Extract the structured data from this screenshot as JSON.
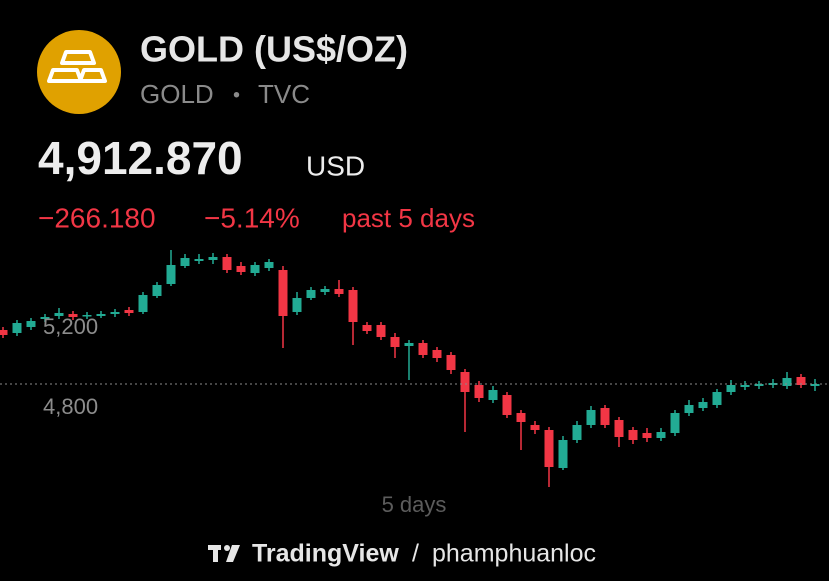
{
  "header": {
    "title": "GOLD (US$/OZ)",
    "symbol": "GOLD",
    "separator": "•",
    "exchange": "TVC",
    "price": "4,912.870",
    "currency": "USD",
    "change": "−266.180",
    "change_pct": "−5.14%",
    "period": "past 5 days"
  },
  "chart_data": {
    "type": "candlestick",
    "x_label": "5 days",
    "up_color": "#22ab94",
    "down_color": "#f23645",
    "ylim": [
      4400,
      5600
    ],
    "yticks": [
      {
        "value": 4800,
        "label": "4,800"
      },
      {
        "value": 5200,
        "label": "5,200"
      }
    ],
    "open": [
      5190,
      5175,
      5205,
      5245,
      5260,
      5270,
      5260,
      5260,
      5270,
      5290,
      5280,
      5360,
      5420,
      5510,
      5535,
      5540,
      5555,
      5510,
      5475,
      5500,
      5490,
      5280,
      5350,
      5380,
      5395,
      5390,
      5215,
      5215,
      5155,
      5110,
      5125,
      5090,
      5065,
      4980,
      4915,
      4840,
      4865,
      4775,
      4715,
      4690,
      4500,
      4640,
      4715,
      4800,
      4740,
      4690,
      4675,
      4650,
      4675,
      4775,
      4800,
      4815,
      4880,
      4905,
      4910,
      4915,
      4910,
      4955,
      4910
    ],
    "high": [
      5205,
      5240,
      5250,
      5270,
      5300,
      5285,
      5280,
      5285,
      5295,
      5305,
      5380,
      5430,
      5590,
      5570,
      5570,
      5575,
      5570,
      5530,
      5530,
      5545,
      5510,
      5380,
      5405,
      5410,
      5440,
      5405,
      5230,
      5230,
      5175,
      5140,
      5140,
      5105,
      5080,
      4995,
      4935,
      4910,
      4880,
      4790,
      4735,
      4705,
      4660,
      4735,
      4810,
      4815,
      4755,
      4705,
      4700,
      4700,
      4790,
      4840,
      4850,
      4895,
      4940,
      4935,
      4935,
      4945,
      4980,
      4970,
      4945
    ],
    "low": [
      5150,
      5160,
      5190,
      5230,
      5245,
      5240,
      5245,
      5250,
      5255,
      5260,
      5270,
      5350,
      5410,
      5500,
      5520,
      5520,
      5475,
      5465,
      5460,
      5485,
      5100,
      5265,
      5340,
      5365,
      5355,
      5115,
      5170,
      5140,
      5050,
      4940,
      5050,
      5030,
      4970,
      4680,
      4830,
      4825,
      4750,
      4590,
      4670,
      4405,
      4490,
      4625,
      4700,
      4700,
      4605,
      4620,
      4630,
      4635,
      4660,
      4760,
      4785,
      4800,
      4865,
      4890,
      4895,
      4900,
      4895,
      4900,
      4885
    ],
    "close": [
      5165,
      5225,
      5235,
      5255,
      5275,
      5255,
      5265,
      5270,
      5280,
      5275,
      5365,
      5415,
      5515,
      5550,
      5545,
      5555,
      5490,
      5480,
      5515,
      5530,
      5260,
      5350,
      5390,
      5395,
      5370,
      5230,
      5185,
      5155,
      5105,
      5125,
      5065,
      5050,
      4990,
      4880,
      4850,
      4890,
      4765,
      4730,
      4690,
      4505,
      4640,
      4715,
      4790,
      4715,
      4655,
      4640,
      4650,
      4680,
      4775,
      4815,
      4830,
      4880,
      4915,
      4915,
      4920,
      4925,
      4950,
      4915,
      4920
    ]
  },
  "footer": {
    "brand": "TradingView",
    "separator": "/",
    "user": "phamphuanloc"
  }
}
